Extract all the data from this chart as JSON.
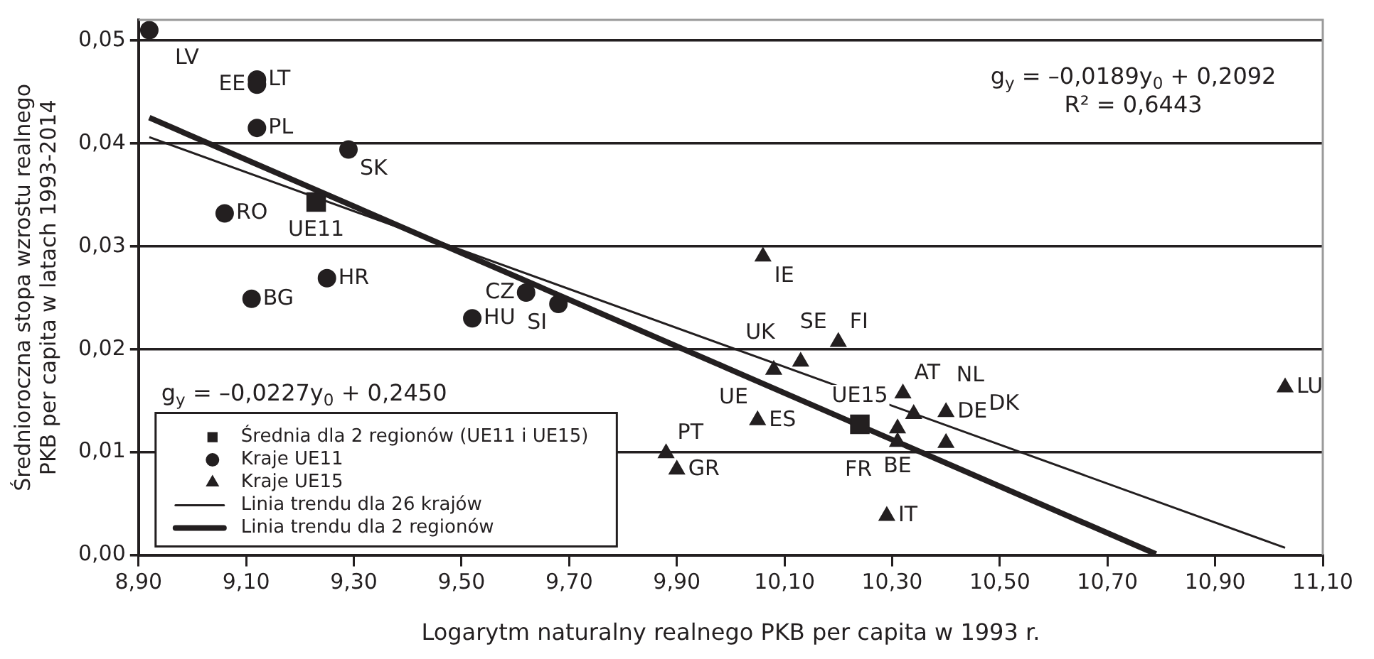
{
  "chart_data": {
    "type": "scatter",
    "xlabel": "Logarytm naturalny realnego PKB per capita w 1993 r.",
    "ylabel": "Średnioroczna stopa wzrostu realnego PKB per capita w latach 1993-2014",
    "xlim": [
      8.9,
      11.1
    ],
    "xticks": [
      {
        "value": 8.9,
        "label": "8,90"
      },
      {
        "value": 9.1,
        "label": "9,10"
      },
      {
        "value": 9.3,
        "label": "9,30"
      },
      {
        "value": 9.5,
        "label": "9,50"
      },
      {
        "value": 9.7,
        "label": "9,70"
      },
      {
        "value": 9.9,
        "label": "9,90"
      },
      {
        "value": 10.1,
        "label": "10,10"
      },
      {
        "value": 10.3,
        "label": "10,30"
      },
      {
        "value": 10.5,
        "label": "10,50"
      },
      {
        "value": 10.7,
        "label": "10,70"
      },
      {
        "value": 10.9,
        "label": "10,90"
      },
      {
        "value": 11.1,
        "label": "11,10"
      }
    ],
    "ylim": [
      0,
      0.052
    ],
    "yticks": [
      {
        "value": 0,
        "label": "0,00"
      },
      {
        "value": 0.01,
        "label": "0,01"
      },
      {
        "value": 0.02,
        "label": "0,02"
      },
      {
        "value": 0.03,
        "label": "0,03"
      },
      {
        "value": 0.04,
        "label": "0,04"
      },
      {
        "value": 0.05,
        "label": "0,05"
      }
    ],
    "grid": "y",
    "legend": "bottom left",
    "series": [
      {
        "name": "Średnia dla 2 regionów (UE11 i UE15)",
        "marker": "square",
        "color": "#231f20",
        "x": [
          9.23,
          10.24
        ],
        "values": [
          0.0343,
          0.0127
        ]
      },
      {
        "name": "Kraje UE11",
        "marker": "circle",
        "color": "#231f20",
        "x": [
          8.92,
          9.12,
          9.12,
          9.12,
          9.29,
          9.06,
          9.25,
          9.11,
          9.52,
          9.62,
          9.68
        ],
        "values": [
          0.051,
          0.0462,
          0.0457,
          0.0415,
          0.0394,
          0.0332,
          0.0269,
          0.0249,
          0.023,
          0.0255,
          0.0244
        ]
      },
      {
        "name": "Kraje UE15",
        "marker": "triangle",
        "color": "#231f20",
        "x": [
          10.06,
          10.2,
          10.13,
          10.08,
          10.05,
          9.88,
          9.9,
          10.32,
          10.34,
          10.4,
          10.31,
          10.4,
          10.31,
          10.29,
          11.03
        ],
        "values": [
          0.029,
          0.0207,
          0.0188,
          0.018,
          0.0131,
          0.0099,
          0.0083,
          0.0157,
          0.0137,
          0.0139,
          0.0123,
          0.0109,
          0.011,
          0.0038,
          0.0163
        ]
      },
      {
        "name": "Linia trendu dla 26 krajów",
        "type": "line",
        "marker": "none",
        "color": "#231f20",
        "x": [
          8.92,
          11.03
        ],
        "values": [
          0.0406,
          0.0007
        ]
      },
      {
        "name": "Linia trendu dla 2 regionów",
        "type": "line",
        "marker": "none",
        "color": "#231f20",
        "x": [
          8.92,
          10.79
        ],
        "values": [
          0.0425,
          0.0001
        ]
      }
    ],
    "annotations": [
      {
        "text": "LV",
        "x": 8.92,
        "y": 0.051
      },
      {
        "text": "LT",
        "x": 9.12,
        "y": 0.0462
      },
      {
        "text": "EE",
        "x": 9.12,
        "y": 0.0457
      },
      {
        "text": "PL",
        "x": 9.12,
        "y": 0.0415
      },
      {
        "text": "SK",
        "x": 9.29,
        "y": 0.0394
      },
      {
        "text": "RO",
        "x": 9.06,
        "y": 0.0332
      },
      {
        "text": "UE11",
        "x": 9.23,
        "y": 0.0343
      },
      {
        "text": "HR",
        "x": 9.25,
        "y": 0.0269
      },
      {
        "text": "BG",
        "x": 9.11,
        "y": 0.0249
      },
      {
        "text": "HU",
        "x": 9.52,
        "y": 0.023
      },
      {
        "text": "CZ",
        "x": 9.62,
        "y": 0.0255
      },
      {
        "text": "SI",
        "x": 9.68,
        "y": 0.0244
      },
      {
        "text": "IE",
        "x": 10.06,
        "y": 0.029
      },
      {
        "text": "FI",
        "x": 10.2,
        "y": 0.0207
      },
      {
        "text": "SE",
        "x": 10.2,
        "y": 0.0207
      },
      {
        "text": "UK",
        "x": 10.13,
        "y": 0.0188
      },
      {
        "text": "UE",
        "x": 10.08,
        "y": 0.018
      },
      {
        "text": "PT",
        "x": 9.88,
        "y": 0.0099
      },
      {
        "text": "ES",
        "x": 10.05,
        "y": 0.0131
      },
      {
        "text": "GR",
        "x": 9.9,
        "y": 0.0083
      },
      {
        "text": "UE15",
        "x": 10.24,
        "y": 0.0127
      },
      {
        "text": "AT",
        "x": 10.32,
        "y": 0.0157
      },
      {
        "text": "DE",
        "x": 10.4,
        "y": 0.0139
      },
      {
        "text": "NL",
        "x": 10.34,
        "y": 0.0137
      },
      {
        "text": "BE",
        "x": 10.31,
        "y": 0.0123
      },
      {
        "text": "DK",
        "x": 10.4,
        "y": 0.0109
      },
      {
        "text": "FR",
        "x": 10.31,
        "y": 0.011
      },
      {
        "text": "IT",
        "x": 10.29,
        "y": 0.0038
      },
      {
        "text": "LU",
        "x": 11.03,
        "y": 0.0163
      },
      "g$_{y}$ = –0,0189y$_{0}$ + 0,2092",
      "R² = 0,6443",
      "g$_{y}$ = –0,0227y$_{0}$ + 0,2450"
    ]
  }
}
